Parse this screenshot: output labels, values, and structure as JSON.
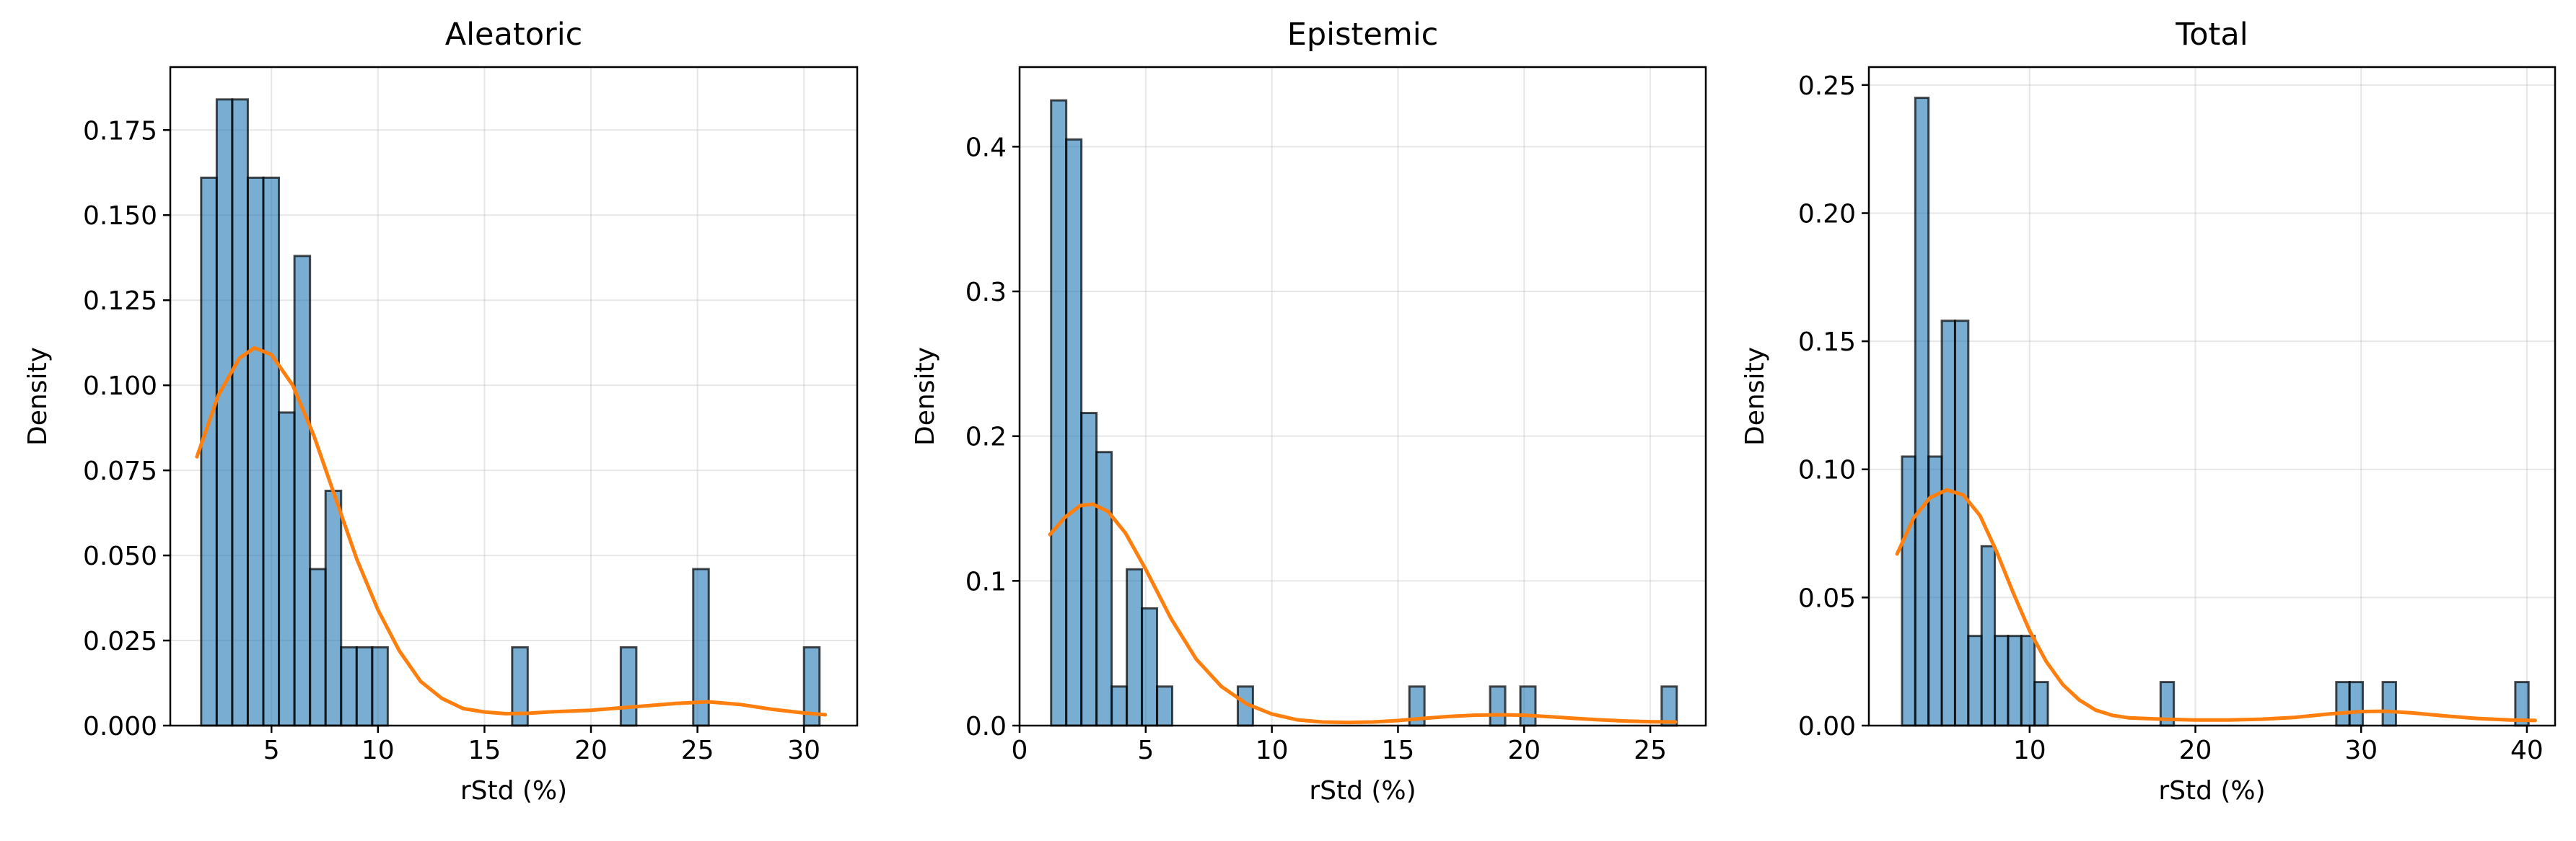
{
  "colors": {
    "bar": "#6baed6",
    "bar_fill": "#1f77b4",
    "kde": "#ff7f0e"
  },
  "chart_data": [
    {
      "type": "histogram",
      "title": "Aleatoric",
      "xlabel": "rStd (%)",
      "ylabel": "Density",
      "xlim": [
        0.25,
        32.5
      ],
      "ylim": [
        0,
        0.1935
      ],
      "xticks": [
        5,
        10,
        15,
        20,
        25,
        30
      ],
      "xtick_labels": [
        "5",
        "10",
        "15",
        "20",
        "25",
        "30"
      ],
      "yticks": [
        0,
        0.025,
        0.05,
        0.075,
        0.1,
        0.125,
        0.15,
        0.175
      ],
      "ytick_labels": [
        "0.000",
        "0.025",
        "0.050",
        "0.075",
        "0.100",
        "0.125",
        "0.150",
        "0.175"
      ],
      "grid": true,
      "bins": [
        {
          "x0": 1.7,
          "x1": 2.43,
          "density": 0.161
        },
        {
          "x0": 2.43,
          "x1": 3.16,
          "density": 0.184
        },
        {
          "x0": 3.16,
          "x1": 3.89,
          "density": 0.184
        },
        {
          "x0": 3.89,
          "x1": 4.62,
          "density": 0.161
        },
        {
          "x0": 4.62,
          "x1": 5.35,
          "density": 0.161
        },
        {
          "x0": 5.35,
          "x1": 6.08,
          "density": 0.092
        },
        {
          "x0": 6.08,
          "x1": 6.81,
          "density": 0.138
        },
        {
          "x0": 6.81,
          "x1": 7.54,
          "density": 0.046
        },
        {
          "x0": 7.54,
          "x1": 8.27,
          "density": 0.069
        },
        {
          "x0": 8.27,
          "x1": 9.0,
          "density": 0.023
        },
        {
          "x0": 9.0,
          "x1": 9.73,
          "density": 0.023
        },
        {
          "x0": 9.73,
          "x1": 10.46,
          "density": 0.023
        },
        {
          "x0": 16.3,
          "x1": 17.03,
          "density": 0.023
        },
        {
          "x0": 21.4,
          "x1": 22.13,
          "density": 0.023
        },
        {
          "x0": 24.8,
          "x1": 25.53,
          "density": 0.046
        },
        {
          "x0": 30.0,
          "x1": 30.73,
          "density": 0.023
        }
      ],
      "kde": {
        "x": [
          1.5,
          2.5,
          3.5,
          4.2,
          5.0,
          6.0,
          7.0,
          8.0,
          9.0,
          10.0,
          11.0,
          12.0,
          13.0,
          14.0,
          15.0,
          16.0,
          17.0,
          18.0,
          20.0,
          22.0,
          24.0,
          25.5,
          27.0,
          28.5,
          30.0,
          31.0
        ],
        "y": [
          0.079,
          0.097,
          0.108,
          0.111,
          0.109,
          0.1,
          0.085,
          0.067,
          0.049,
          0.034,
          0.022,
          0.013,
          0.008,
          0.005,
          0.004,
          0.0035,
          0.0036,
          0.004,
          0.0045,
          0.0055,
          0.0065,
          0.007,
          0.0062,
          0.0048,
          0.0037,
          0.0032
        ]
      }
    },
    {
      "type": "histogram",
      "title": "Epistemic",
      "xlabel": "rStd (%)",
      "ylabel": "Density",
      "xlim": [
        0,
        27.2
      ],
      "ylim": [
        0,
        0.455
      ],
      "xticks": [
        0,
        5,
        10,
        15,
        20,
        25
      ],
      "xtick_labels": [
        "0",
        "5",
        "10",
        "15",
        "20",
        "25"
      ],
      "yticks": [
        0,
        0.1,
        0.2,
        0.3,
        0.4
      ],
      "ytick_labels": [
        "0.0",
        "0.1",
        "0.2",
        "0.3",
        "0.4"
      ],
      "grid": true,
      "bins": [
        {
          "x0": 1.25,
          "x1": 1.85,
          "density": 0.432
        },
        {
          "x0": 1.85,
          "x1": 2.45,
          "density": 0.405
        },
        {
          "x0": 2.45,
          "x1": 3.05,
          "density": 0.216
        },
        {
          "x0": 3.05,
          "x1": 3.65,
          "density": 0.189
        },
        {
          "x0": 3.65,
          "x1": 4.25,
          "density": 0.027
        },
        {
          "x0": 4.25,
          "x1": 4.85,
          "density": 0.108
        },
        {
          "x0": 4.85,
          "x1": 5.45,
          "density": 0.081
        },
        {
          "x0": 5.45,
          "x1": 6.05,
          "density": 0.027
        },
        {
          "x0": 8.65,
          "x1": 9.25,
          "density": 0.027
        },
        {
          "x0": 15.45,
          "x1": 16.05,
          "density": 0.027
        },
        {
          "x0": 18.65,
          "x1": 19.25,
          "density": 0.027
        },
        {
          "x0": 19.85,
          "x1": 20.45,
          "density": 0.027
        },
        {
          "x0": 25.45,
          "x1": 26.05,
          "density": 0.027
        }
      ],
      "kde": {
        "x": [
          1.2,
          1.8,
          2.4,
          2.9,
          3.5,
          4.2,
          5.0,
          6.0,
          7.0,
          8.0,
          9.0,
          10.0,
          11.0,
          12.0,
          13.0,
          14.0,
          15.0,
          16.0,
          17.0,
          18.0,
          19.0,
          20.0,
          21.0,
          22.0,
          23.0,
          24.0,
          25.0,
          26.0
        ],
        "y": [
          0.132,
          0.144,
          0.152,
          0.153,
          0.148,
          0.133,
          0.108,
          0.074,
          0.046,
          0.027,
          0.015,
          0.008,
          0.004,
          0.0025,
          0.0022,
          0.0025,
          0.0035,
          0.005,
          0.0063,
          0.0072,
          0.0075,
          0.0072,
          0.0062,
          0.005,
          0.004,
          0.0032,
          0.0027,
          0.0025
        ]
      }
    },
    {
      "type": "histogram",
      "title": "Total",
      "xlabel": "rStd (%)",
      "ylabel": "Density",
      "xlim": [
        0.3,
        41.7
      ],
      "ylim": [
        0,
        0.257
      ],
      "xticks": [
        10,
        20,
        30,
        40
      ],
      "xtick_labels": [
        "10",
        "20",
        "30",
        "40"
      ],
      "yticks": [
        0,
        0.05,
        0.1,
        0.15,
        0.2,
        0.25
      ],
      "ytick_labels": [
        "0.00",
        "0.05",
        "0.10",
        "0.15",
        "0.20",
        "0.25"
      ],
      "grid": true,
      "bins": [
        {
          "x0": 2.3,
          "x1": 3.1,
          "density": 0.105
        },
        {
          "x0": 3.1,
          "x1": 3.9,
          "density": 0.245
        },
        {
          "x0": 3.9,
          "x1": 4.7,
          "density": 0.105
        },
        {
          "x0": 4.7,
          "x1": 5.5,
          "density": 0.158
        },
        {
          "x0": 5.5,
          "x1": 6.3,
          "density": 0.158
        },
        {
          "x0": 6.3,
          "x1": 7.1,
          "density": 0.035
        },
        {
          "x0": 7.1,
          "x1": 7.9,
          "density": 0.07
        },
        {
          "x0": 7.9,
          "x1": 8.7,
          "density": 0.035
        },
        {
          "x0": 8.7,
          "x1": 9.5,
          "density": 0.035
        },
        {
          "x0": 9.5,
          "x1": 10.3,
          "density": 0.035
        },
        {
          "x0": 10.3,
          "x1": 11.1,
          "density": 0.017
        },
        {
          "x0": 17.9,
          "x1": 18.7,
          "density": 0.017
        },
        {
          "x0": 28.5,
          "x1": 29.3,
          "density": 0.017
        },
        {
          "x0": 29.3,
          "x1": 30.1,
          "density": 0.017
        },
        {
          "x0": 31.3,
          "x1": 32.1,
          "density": 0.017
        },
        {
          "x0": 39.3,
          "x1": 40.1,
          "density": 0.017
        }
      ],
      "kde": {
        "x": [
          2.0,
          3.0,
          4.0,
          5.0,
          6.0,
          7.0,
          8.0,
          9.0,
          10.0,
          11.0,
          12.0,
          13.0,
          14.0,
          15.0,
          16.0,
          18.0,
          20.0,
          22.0,
          24.0,
          26.0,
          28.0,
          30.0,
          31.5,
          33.0,
          35.0,
          37.0,
          39.0,
          40.5
        ],
        "y": [
          0.067,
          0.081,
          0.089,
          0.092,
          0.09,
          0.082,
          0.068,
          0.052,
          0.037,
          0.025,
          0.016,
          0.01,
          0.006,
          0.004,
          0.003,
          0.0025,
          0.0022,
          0.0022,
          0.0025,
          0.0032,
          0.0045,
          0.0055,
          0.0056,
          0.005,
          0.0038,
          0.0028,
          0.0022,
          0.002
        ]
      }
    }
  ]
}
